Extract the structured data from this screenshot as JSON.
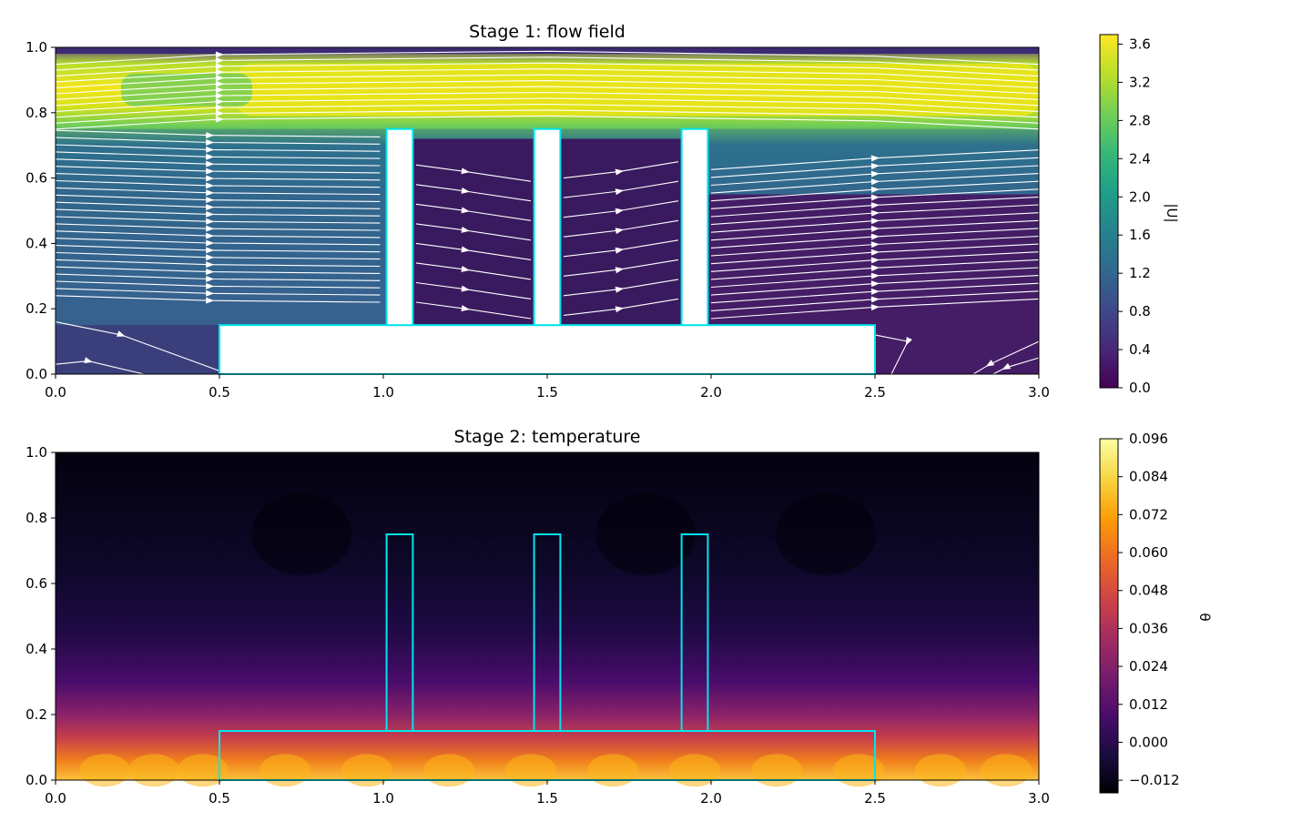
{
  "chart_data": [
    {
      "type": "heatmap",
      "title": "Stage 1: flow field",
      "xlim": [
        0.0,
        3.0
      ],
      "ylim": [
        0.0,
        1.0
      ],
      "x_ticks": [
        "0.0",
        "0.5",
        "1.0",
        "1.5",
        "2.0",
        "2.5",
        "3.0"
      ],
      "y_ticks": [
        "0.0",
        "0.2",
        "0.4",
        "0.6",
        "0.8",
        "1.0"
      ],
      "colormap": "viridis",
      "colorbar_label": "|U|",
      "colorbar_range": [
        0.0,
        3.7
      ],
      "colorbar_ticks": [
        "0.0",
        "0.4",
        "0.8",
        "1.2",
        "1.6",
        "2.0",
        "2.4",
        "2.8",
        "3.2",
        "3.6"
      ],
      "overlay": "streamlines",
      "obstacle_color": "#00e5ee",
      "obstacles": [
        {
          "x0": 0.5,
          "x1": 2.5,
          "y0": 0.0,
          "y1": 0.15
        },
        {
          "x0": 1.01,
          "x1": 1.09,
          "y0": 0.15,
          "y1": 0.75
        },
        {
          "x0": 1.46,
          "x1": 1.54,
          "y0": 0.15,
          "y1": 0.75
        },
        {
          "x0": 1.91,
          "x1": 1.99,
          "y0": 0.15,
          "y1": 0.75
        }
      ],
      "jet_band": {
        "y_center": 0.88,
        "peak_magnitude": 3.6
      }
    },
    {
      "type": "heatmap",
      "title": "Stage 2: temperature",
      "xlim": [
        0.0,
        3.0
      ],
      "ylim": [
        0.0,
        1.0
      ],
      "x_ticks": [
        "0.0",
        "0.5",
        "1.0",
        "1.5",
        "2.0",
        "2.5",
        "3.0"
      ],
      "y_ticks": [
        "0.0",
        "0.2",
        "0.4",
        "0.6",
        "0.8",
        "1.0"
      ],
      "colormap": "inferno",
      "colorbar_label": "θ",
      "colorbar_range": [
        -0.016,
        0.096
      ],
      "colorbar_ticks": [
        "−0.012",
        "0.000",
        "0.012",
        "0.024",
        "0.036",
        "0.048",
        "0.060",
        "0.072",
        "0.084",
        "0.096"
      ],
      "obstacle_color": "#00e5ee",
      "obstacles": [
        {
          "x0": 0.5,
          "x1": 2.5,
          "y0": 0.0,
          "y1": 0.15
        },
        {
          "x0": 1.01,
          "x1": 1.09,
          "y0": 0.15,
          "y1": 0.75
        },
        {
          "x0": 1.46,
          "x1": 1.54,
          "y0": 0.15,
          "y1": 0.75
        },
        {
          "x0": 1.91,
          "x1": 1.99,
          "y0": 0.15,
          "y1": 0.75
        }
      ]
    }
  ]
}
